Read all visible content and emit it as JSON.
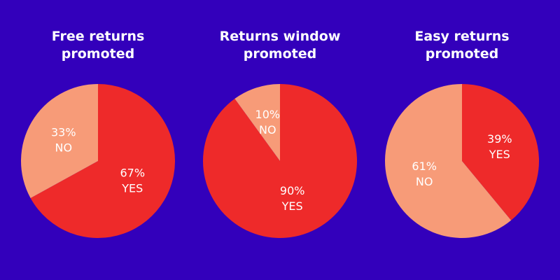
{
  "chart_data": [
    {
      "type": "pie",
      "title": "Free returns promoted",
      "categories": [
        "YES",
        "NO"
      ],
      "values": [
        67,
        33
      ],
      "value_labels": [
        "67%",
        "33%"
      ],
      "colors": [
        "#ee2a2a",
        "#f79b78"
      ]
    },
    {
      "type": "pie",
      "title": "Returns window promoted",
      "categories": [
        "YES",
        "NO"
      ],
      "values": [
        90,
        10
      ],
      "value_labels": [
        "90%",
        "10%"
      ],
      "colors": [
        "#ee2a2a",
        "#f79b78"
      ]
    },
    {
      "type": "pie",
      "title": "Easy returns promoted",
      "categories": [
        "YES",
        "NO"
      ],
      "values": [
        39,
        61
      ],
      "value_labels": [
        "39%",
        "61%"
      ],
      "colors": [
        "#ee2a2a",
        "#f79b78"
      ]
    }
  ]
}
